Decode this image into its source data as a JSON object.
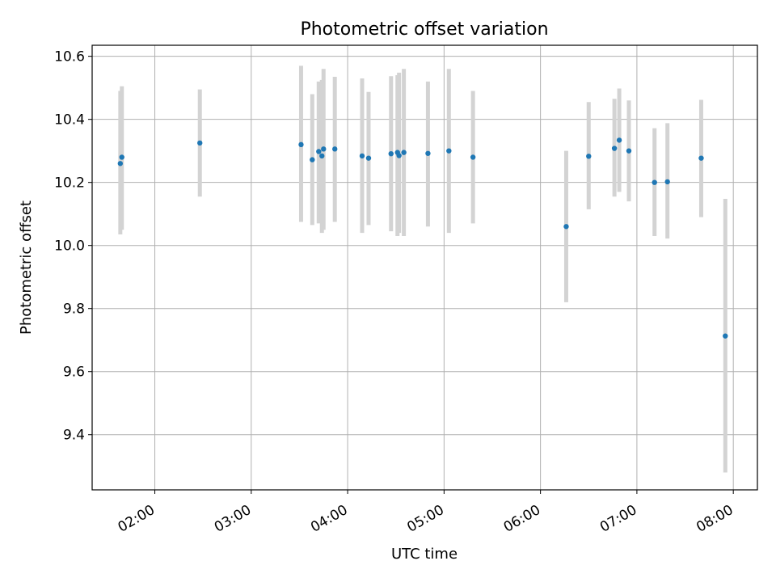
{
  "chart_data": {
    "type": "scatter",
    "title": "Photometric offset variation",
    "xlabel": "UTC time",
    "ylabel": "Photometric offset",
    "x_unit": "hours UTC",
    "xlim": [
      1.35,
      8.25
    ],
    "ylim": [
      9.225,
      10.635
    ],
    "xticks": [
      {
        "value": 2,
        "label": "02:00"
      },
      {
        "value": 3,
        "label": "03:00"
      },
      {
        "value": 4,
        "label": "04:00"
      },
      {
        "value": 5,
        "label": "05:00"
      },
      {
        "value": 6,
        "label": "06:00"
      },
      {
        "value": 7,
        "label": "07:00"
      },
      {
        "value": 8,
        "label": "08:00"
      }
    ],
    "yticks": [
      {
        "value": 9.4,
        "label": "9.4"
      },
      {
        "value": 9.6,
        "label": "9.6"
      },
      {
        "value": 9.8,
        "label": "9.8"
      },
      {
        "value": 10.0,
        "label": "10.0"
      },
      {
        "value": 10.2,
        "label": "10.2"
      },
      {
        "value": 10.4,
        "label": "10.4"
      },
      {
        "value": 10.6,
        "label": "10.6"
      }
    ],
    "grid": true,
    "colors": {
      "points": "#1f77b4",
      "error_bars": "#d3d3d3",
      "grid": "#b0b0b0"
    },
    "points": [
      {
        "x": 1.642,
        "y": 10.26,
        "err_low": 10.035,
        "err_high": 10.49
      },
      {
        "x": 1.658,
        "y": 10.28,
        "err_low": 10.05,
        "err_high": 10.505
      },
      {
        "x": 2.467,
        "y": 10.325,
        "err_low": 10.155,
        "err_high": 10.495
      },
      {
        "x": 3.517,
        "y": 10.32,
        "err_low": 10.075,
        "err_high": 10.57
      },
      {
        "x": 3.633,
        "y": 10.272,
        "err_low": 10.065,
        "err_high": 10.48
      },
      {
        "x": 3.7,
        "y": 10.298,
        "err_low": 10.07,
        "err_high": 10.52
      },
      {
        "x": 3.733,
        "y": 10.284,
        "err_low": 10.04,
        "err_high": 10.525
      },
      {
        "x": 3.75,
        "y": 10.306,
        "err_low": 10.05,
        "err_high": 10.56
      },
      {
        "x": 3.867,
        "y": 10.306,
        "err_low": 10.075,
        "err_high": 10.535
      },
      {
        "x": 4.15,
        "y": 10.284,
        "err_low": 10.04,
        "err_high": 10.53
      },
      {
        "x": 4.217,
        "y": 10.277,
        "err_low": 10.065,
        "err_high": 10.487
      },
      {
        "x": 4.45,
        "y": 10.291,
        "err_low": 10.045,
        "err_high": 10.537
      },
      {
        "x": 4.517,
        "y": 10.295,
        "err_low": 10.03,
        "err_high": 10.54
      },
      {
        "x": 4.533,
        "y": 10.285,
        "err_low": 10.04,
        "err_high": 10.548
      },
      {
        "x": 4.583,
        "y": 10.295,
        "err_low": 10.03,
        "err_high": 10.56
      },
      {
        "x": 4.833,
        "y": 10.292,
        "err_low": 10.06,
        "err_high": 10.52
      },
      {
        "x": 5.05,
        "y": 10.3,
        "err_low": 10.04,
        "err_high": 10.56
      },
      {
        "x": 5.3,
        "y": 10.28,
        "err_low": 10.07,
        "err_high": 10.49
      },
      {
        "x": 6.267,
        "y": 10.06,
        "err_low": 9.82,
        "err_high": 10.3
      },
      {
        "x": 6.5,
        "y": 10.283,
        "err_low": 10.115,
        "err_high": 10.455
      },
      {
        "x": 6.767,
        "y": 10.308,
        "err_low": 10.155,
        "err_high": 10.465
      },
      {
        "x": 6.817,
        "y": 10.334,
        "err_low": 10.17,
        "err_high": 10.498
      },
      {
        "x": 6.917,
        "y": 10.3,
        "err_low": 10.14,
        "err_high": 10.46
      },
      {
        "x": 7.183,
        "y": 10.2,
        "err_low": 10.03,
        "err_high": 10.372
      },
      {
        "x": 7.317,
        "y": 10.202,
        "err_low": 10.022,
        "err_high": 10.388
      },
      {
        "x": 7.667,
        "y": 10.277,
        "err_low": 10.09,
        "err_high": 10.462
      },
      {
        "x": 7.917,
        "y": 9.713,
        "err_low": 9.28,
        "err_high": 10.148
      }
    ]
  }
}
